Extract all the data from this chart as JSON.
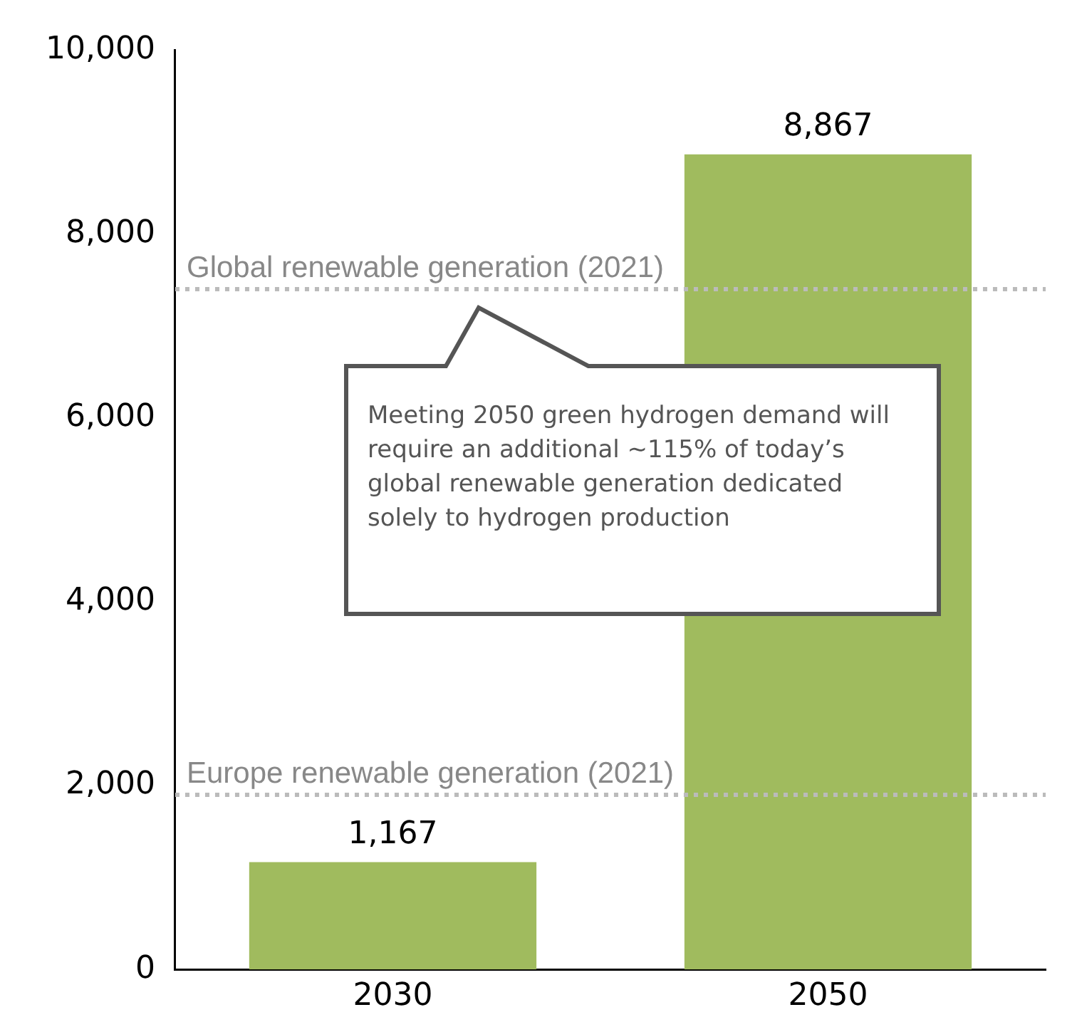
{
  "chart_data": {
    "type": "bar",
    "categories": [
      "2030",
      "2050"
    ],
    "series": [
      {
        "color": "#a0bb5e",
        "values": [
          1167,
          8867
        ],
        "value_labels": [
          "1,167",
          "8,867"
        ]
      }
    ],
    "ylim": [
      0,
      10000
    ],
    "yticks": [
      {
        "value": 0,
        "label": "0"
      },
      {
        "value": 2000,
        "label": "2,000"
      },
      {
        "value": 4000,
        "label": "4,000"
      },
      {
        "value": 6000,
        "label": "6,000"
      },
      {
        "value": 8000,
        "label": "8,000"
      },
      {
        "value": 10000,
        "label": "10,000"
      }
    ],
    "grid": false,
    "legend": false,
    "ref_lines": [
      {
        "axis": "y",
        "value": 7400,
        "label": "Global renewable generation (2021)",
        "color": "#bbbbbb",
        "line_style": "dotted"
      },
      {
        "axis": "y",
        "value": 1900,
        "label": "Europe renewable generation (2021)",
        "color": "#bbbbbb",
        "line_style": "dotted"
      }
    ],
    "annotations": [
      "Meeting 2050 green hydrogen demand will require an additional ~115% of today’s global renewable generation dedicated solely to hydrogen production"
    ]
  }
}
